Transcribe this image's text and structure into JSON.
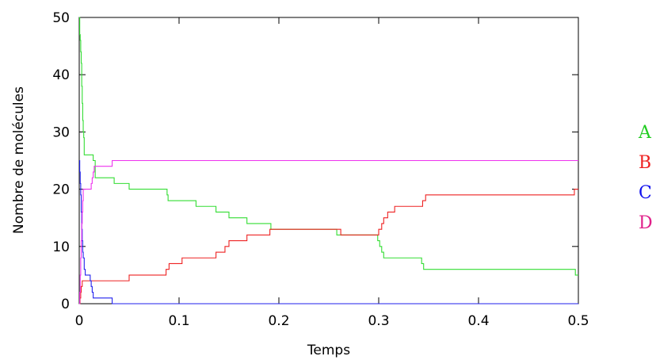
{
  "chart_data": {
    "type": "line",
    "xlabel": "Temps",
    "ylabel": "Nombre de molécules",
    "xlim": [
      0,
      0.5
    ],
    "ylim": [
      0,
      50
    ],
    "x_ticks": [
      "0",
      "0.1",
      "0.2",
      "0.3",
      "0.4",
      "0.5"
    ],
    "y_ticks": [
      "0",
      "10",
      "20",
      "30",
      "40",
      "50"
    ],
    "x_tick_values": [
      0,
      0.1,
      0.2,
      0.3,
      0.4,
      0.5
    ],
    "y_tick_values": [
      0,
      10,
      20,
      30,
      40,
      50
    ],
    "grid": false,
    "legend_position": "right",
    "step": true,
    "series": [
      {
        "name": "A",
        "color": "#33dd33",
        "points": [
          [
            0,
            50
          ],
          [
            0.0005,
            47
          ],
          [
            0.001,
            46
          ],
          [
            0.0015,
            44
          ],
          [
            0.002,
            42
          ],
          [
            0.0025,
            38
          ],
          [
            0.003,
            35
          ],
          [
            0.0035,
            32
          ],
          [
            0.004,
            30
          ],
          [
            0.0045,
            29
          ],
          [
            0.005,
            26
          ],
          [
            0.014,
            25
          ],
          [
            0.016,
            22
          ],
          [
            0.035,
            21
          ],
          [
            0.05,
            20
          ],
          [
            0.088,
            19
          ],
          [
            0.089,
            18
          ],
          [
            0.117,
            17
          ],
          [
            0.137,
            16
          ],
          [
            0.15,
            15
          ],
          [
            0.168,
            14
          ],
          [
            0.192,
            13
          ],
          [
            0.258,
            12
          ],
          [
            0.299,
            11
          ],
          [
            0.301,
            10
          ],
          [
            0.303,
            9
          ],
          [
            0.305,
            8
          ],
          [
            0.343,
            7
          ],
          [
            0.345,
            6
          ],
          [
            0.497,
            5
          ],
          [
            0.5,
            5
          ]
        ]
      },
      {
        "name": "B",
        "color": "#ee2222",
        "points": [
          [
            0,
            0
          ],
          [
            0.0008,
            1
          ],
          [
            0.0015,
            2
          ],
          [
            0.002,
            3
          ],
          [
            0.003,
            4
          ],
          [
            0.05,
            5
          ],
          [
            0.087,
            6
          ],
          [
            0.09,
            7
          ],
          [
            0.103,
            8
          ],
          [
            0.12,
            8
          ],
          [
            0.137,
            9
          ],
          [
            0.146,
            10
          ],
          [
            0.15,
            11
          ],
          [
            0.168,
            12
          ],
          [
            0.191,
            13
          ],
          [
            0.262,
            12
          ],
          [
            0.3,
            13
          ],
          [
            0.303,
            14
          ],
          [
            0.305,
            15
          ],
          [
            0.309,
            16
          ],
          [
            0.316,
            17
          ],
          [
            0.344,
            18
          ],
          [
            0.347,
            19
          ],
          [
            0.496,
            20
          ],
          [
            0.5,
            20
          ]
        ]
      },
      {
        "name": "C",
        "color": "#2222ee",
        "points": [
          [
            0,
            25
          ],
          [
            0.0005,
            23
          ],
          [
            0.001,
            21
          ],
          [
            0.0015,
            19
          ],
          [
            0.002,
            16
          ],
          [
            0.0025,
            13
          ],
          [
            0.003,
            11
          ],
          [
            0.0035,
            9
          ],
          [
            0.004,
            8
          ],
          [
            0.005,
            6
          ],
          [
            0.006,
            5
          ],
          [
            0.011,
            4
          ],
          [
            0.012,
            3
          ],
          [
            0.013,
            2
          ],
          [
            0.014,
            1
          ],
          [
            0.033,
            0
          ],
          [
            0.5,
            0
          ]
        ]
      },
      {
        "name": "D",
        "color": "#ee33ee",
        "points": [
          [
            0,
            0
          ],
          [
            0.0005,
            2
          ],
          [
            0.001,
            5
          ],
          [
            0.0015,
            8
          ],
          [
            0.002,
            11
          ],
          [
            0.0025,
            14
          ],
          [
            0.003,
            16
          ],
          [
            0.0035,
            18
          ],
          [
            0.004,
            20
          ],
          [
            0.012,
            21
          ],
          [
            0.013,
            22
          ],
          [
            0.014,
            23
          ],
          [
            0.015,
            24
          ],
          [
            0.033,
            25
          ],
          [
            0.5,
            25
          ]
        ]
      }
    ]
  },
  "legend": [
    {
      "label": "A",
      "color": "#22cc22"
    },
    {
      "label": "B",
      "color": "#ee2222"
    },
    {
      "label": "C",
      "color": "#1111ee"
    },
    {
      "label": "D",
      "color": "#e0208a"
    }
  ]
}
